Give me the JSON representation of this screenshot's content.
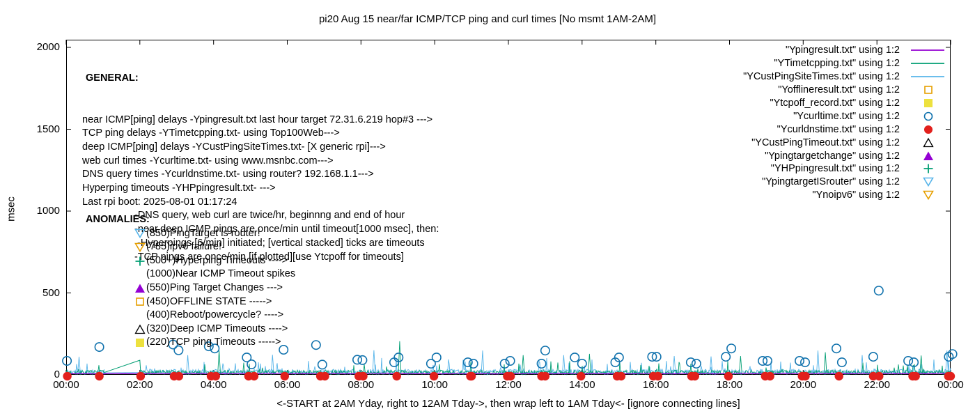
{
  "title": "pi20 Aug 15  near/far ICMP/TCP ping and curl times [No msmt 1AM-2AM]",
  "axes": {
    "ylabel": "msec",
    "xlabel": "<-START at 2AM Yday, right to 12AM Tday->, then wrap left to 1AM Tday<- [ignore connecting lines]",
    "yticks": [
      "0",
      "500",
      "1000",
      "1500",
      "2000"
    ],
    "xticks": [
      "00:00",
      "02:00",
      "04:00",
      "06:00",
      "08:00",
      "10:00",
      "12:00",
      "14:00",
      "16:00",
      "18:00",
      "20:00",
      "22:00",
      "00:00"
    ],
    "ylim": [
      0,
      2000
    ],
    "xlim_hours": [
      0,
      24
    ],
    "grid": false
  },
  "general": {
    "heading": "GENERAL:",
    "lines": [
      "near ICMP[ping] delays -Ypingresult.txt last hour target 72.31.6.219 hop#3 --->",
      "TCP ping delays -YTimetcpping.txt- using Top100Web--->",
      "deep ICMP[ping] delays -YCustPingSiteTimes.txt- [X generic rpi]--->",
      "web curl times -Ycurltime.txt- using www.msnbc.com--->",
      "DNS query times -Ycurldnstime.txt- using router? 192.168.1.1--->",
      "Hyperping timeouts -YHPpingresult.txt- --->",
      "Last rpi boot: 2025-08-01 01:17:24"
    ],
    "notes": [
      "-DNS query, web curl are twice/hr, beginnng and end of hour",
      "-near,deep ICMP pings are once/min until timeout[1000 msec], then:",
      " -Hyperpings [6/min] initiated; [vertical stacked] ticks are timeouts",
      "-TCP pings are once/min [if plotted][use Ytcpoff for timeouts]"
    ]
  },
  "anomalies": {
    "heading": "ANOMALIES:",
    "items": [
      {
        "marker": "open-triangle-down",
        "color": "#56b4e9",
        "text": "(850)PingTarget is router!"
      },
      {
        "marker": "open-triangle-down",
        "color": "#e69f00",
        "text": "(785)ipv6 failure!"
      },
      {
        "marker": "plus",
        "color": "#009e73",
        "text": "(500+)Hyperping Timeouts ---->"
      },
      {
        "marker": "none",
        "color": "",
        "text": "(1000)Near ICMP Timeout spikes"
      },
      {
        "marker": "filled-triangle-up",
        "color": "#9400d3",
        "text": "(550)Ping Target Changes --->"
      },
      {
        "marker": "open-square",
        "color": "#e69f00",
        "text": "(450)OFFLINE STATE ----->"
      },
      {
        "marker": "none",
        "color": "",
        "text": "(400)Reboot/powercycle? ---->"
      },
      {
        "marker": "open-triangle-up",
        "color": "#000000",
        "text": "(320)Deep ICMP Timeouts ---->"
      },
      {
        "marker": "filled-square",
        "color": "#ede13e",
        "text": "(220)TCP ping Timeouts ----->"
      }
    ]
  },
  "legend": {
    "items": [
      {
        "label": "\"Ypingresult.txt\" using 1:2",
        "marker": "line",
        "color": "#9400d3"
      },
      {
        "label": "\"YTimetcpping.txt\" using 1:2",
        "marker": "line",
        "color": "#009e73"
      },
      {
        "label": "\"YCustPingSiteTimes.txt\" using 1:2",
        "marker": "line",
        "color": "#56b4e9"
      },
      {
        "label": "\"Yofflineresult.txt\" using 1:2",
        "marker": "open-square",
        "color": "#e69f00"
      },
      {
        "label": "\"Ytcpoff_record.txt\" using 1:2",
        "marker": "filled-square",
        "color": "#ede13e"
      },
      {
        "label": "\"Ycurltime.txt\" using 1:2",
        "marker": "open-circle",
        "color": "#1072ad"
      },
      {
        "label": "\"Ycurldnstime.txt\" using 1:2",
        "marker": "filled-circle",
        "color": "#e2201c"
      },
      {
        "label": "\"YCustPingTimeout.txt\" using 1:2",
        "marker": "open-triangle-up",
        "color": "#000000"
      },
      {
        "label": "\"Ypingtargetchange\" using 1:2",
        "marker": "filled-triangle-up",
        "color": "#9400d3"
      },
      {
        "label": "\"YHPpingresult.txt\" using 1:2",
        "marker": "plus",
        "color": "#009e73"
      },
      {
        "label": "\"YpingtargetISrouter\" using 1:2",
        "marker": "open-triangle-down",
        "color": "#56b4e9"
      },
      {
        "label": "\"Ynoipv6\" using 1:2",
        "marker": "open-triangle-down",
        "color": "#e69f00"
      }
    ]
  },
  "chart_data": {
    "type": "line",
    "x_unit": "hour of day (00:00-24:00)",
    "y_unit": "msec",
    "xlim": [
      0,
      24
    ],
    "ylim": [
      0,
      2000
    ],
    "no_measurement_gap_hours": [
      1,
      2
    ],
    "series": [
      {
        "name": "Ypingresult.txt near ICMP ping",
        "style": "line",
        "color": "#9400d3",
        "description": "flat line ~5-10 msec across entire day",
        "noise": {
          "base": 5.5,
          "amp": 4,
          "p": 0,
          "spike": 0,
          "step": 5,
          "gap": false
        }
      },
      {
        "name": "YTimetcpping.txt TCP ping",
        "style": "line",
        "color": "#009e73",
        "description": "noisy 2-70 msec, occasional spikes to ~100-205; gap 1AM-2AM bridged by connecting line",
        "noise": {
          "base": 2,
          "amp": 26,
          "p": 0.05,
          "spike": 65,
          "step": 1,
          "gap": true
        },
        "gap_connector": [
          [
            1.03,
            14
          ],
          [
            2.0,
            89
          ],
          [
            2.02,
            20
          ]
        ],
        "tall_spikes": [
          [
            4.15,
            148
          ],
          [
            9.05,
            205
          ],
          [
            12.4,
            120
          ],
          [
            14.2,
            128
          ],
          [
            18.3,
            115
          ],
          [
            20.6,
            138
          ],
          [
            23.2,
            118
          ]
        ]
      },
      {
        "name": "YCustPingSiteTimes.txt deep ICMP ping",
        "style": "line",
        "color": "#56b4e9",
        "description": "noisy 2-95 msec, occasional spikes to ~110-150; gap 1AM-2AM bridged flat",
        "noise": {
          "base": 2,
          "amp": 32,
          "p": 0.07,
          "spike": 75,
          "step": 1,
          "gap": true
        },
        "gap_connector": [
          [
            1.03,
            12
          ],
          [
            2.0,
            14
          ]
        ],
        "tall_spikes": [
          [
            0.35,
            110
          ],
          [
            3.3,
            120
          ],
          [
            5.6,
            122
          ],
          [
            8.35,
            150
          ],
          [
            11.3,
            148
          ],
          [
            13.5,
            120
          ],
          [
            16.5,
            115
          ],
          [
            17.5,
            112
          ],
          [
            20.4,
            148
          ],
          [
            21.6,
            120
          ],
          [
            23.9,
            148
          ]
        ]
      },
      {
        "name": "Ycurltime.txt web curl times",
        "style": "scatter open-circle",
        "color": "#1072ad",
        "points_hour_msec": [
          [
            0.02,
            85
          ],
          [
            0.9,
            170
          ],
          [
            2.9,
            185
          ],
          [
            3.05,
            150
          ],
          [
            3.87,
            174
          ],
          [
            4.03,
            161
          ],
          [
            4.9,
            106
          ],
          [
            5.03,
            64
          ],
          [
            5.9,
            153
          ],
          [
            6.78,
            182
          ],
          [
            6.95,
            62
          ],
          [
            7.9,
            92
          ],
          [
            8.04,
            90
          ],
          [
            8.9,
            76
          ],
          [
            9.02,
            106
          ],
          [
            9.9,
            68
          ],
          [
            10.05,
            106
          ],
          [
            10.9,
            76
          ],
          [
            11.05,
            68
          ],
          [
            11.9,
            68
          ],
          [
            12.05,
            85
          ],
          [
            12.9,
            68
          ],
          [
            13.0,
            148
          ],
          [
            13.8,
            106
          ],
          [
            14.0,
            68
          ],
          [
            14.9,
            76
          ],
          [
            15.0,
            106
          ],
          [
            15.9,
            110
          ],
          [
            16.02,
            110
          ],
          [
            16.95,
            76
          ],
          [
            17.1,
            68
          ],
          [
            17.9,
            110
          ],
          [
            18.05,
            161
          ],
          [
            18.9,
            85
          ],
          [
            19.03,
            85
          ],
          [
            19.9,
            85
          ],
          [
            20.05,
            76
          ],
          [
            20.9,
            161
          ],
          [
            21.05,
            76
          ],
          [
            21.9,
            110
          ],
          [
            22.05,
            514
          ],
          [
            22.85,
            85
          ],
          [
            23.0,
            76
          ],
          [
            23.95,
            110
          ],
          [
            24.05,
            127
          ]
        ]
      },
      {
        "name": "Ycurldnstime.txt DNS query times",
        "style": "scatter filled-circle",
        "color": "#e2201c",
        "msec": 0,
        "hours": [
          0.03,
          0.9,
          2.02,
          2.93,
          3.06,
          3.93,
          4.06,
          4.95,
          5.1,
          5.93,
          6.9,
          7.02,
          7.94,
          8.06,
          8.97,
          9.98,
          10.97,
          11.0,
          11.97,
          12.06,
          12.9,
          13.0,
          13.97,
          14.95,
          15.06,
          15.93,
          16.06,
          16.97,
          17.06,
          17.97,
          18.97,
          19.1,
          19.97,
          20.06,
          20.97,
          21.9,
          22.06,
          22.97,
          23.05,
          23.94,
          24.0
        ]
      }
    ]
  }
}
